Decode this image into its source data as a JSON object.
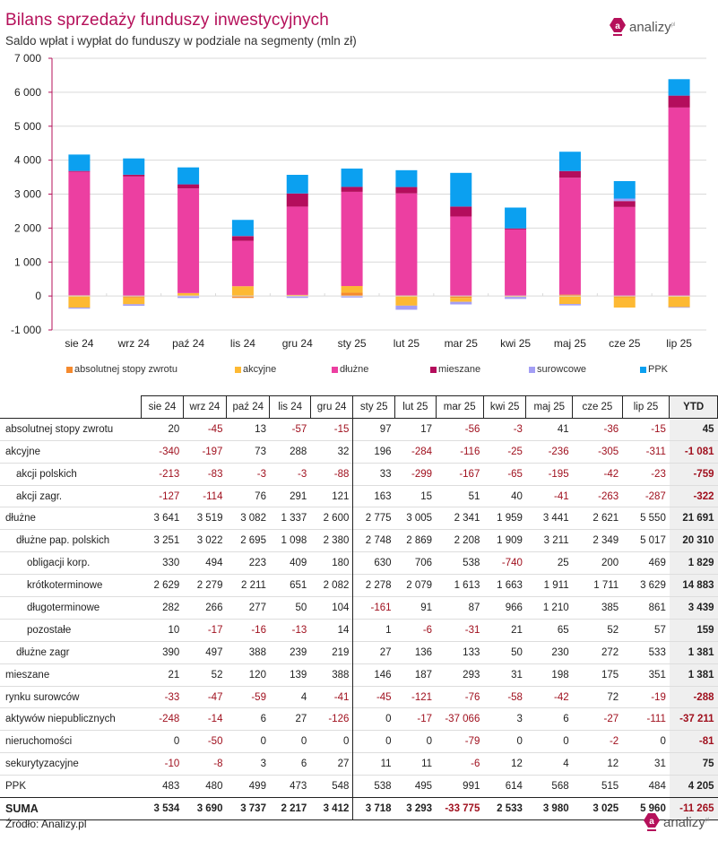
{
  "header": {
    "title": "Bilans sprzedaży funduszy inwestycyjnych",
    "subtitle": "Saldo wpłat i wypłat do funduszy w podziale na segmenty (mln zł)",
    "logo_text": "analizy",
    "logo_sup": "pl"
  },
  "colors": {
    "title": "#b5105a",
    "absolutnej": "#f58a2e",
    "akcyjne": "#fdb933",
    "dluzne": "#ec3fa1",
    "mieszane": "#b40d5c",
    "surowcowe": "#a39ef5",
    "ppk": "#0ba0f0",
    "negative_text": "#a0101e"
  },
  "chart_data": {
    "type": "bar",
    "stacked": true,
    "title": "Bilans sprzedaży funduszy inwestycyjnych",
    "subtitle": "Saldo wpłat i wypłat do funduszy w podziale na segmenty (mln zł)",
    "xlabel": "",
    "ylabel": "",
    "ylim": [
      -1000,
      7000
    ],
    "yticks": [
      -1000,
      0,
      1000,
      2000,
      3000,
      4000,
      5000,
      6000,
      7000
    ],
    "ytick_labels": [
      "-1 000",
      "0",
      "1 000",
      "2 000",
      "3 000",
      "4 000",
      "5 000",
      "6 000",
      "7 000"
    ],
    "grid": true,
    "legend_position": "bottom",
    "categories": [
      "sie 24",
      "wrz 24",
      "paź 24",
      "lis 24",
      "gru 24",
      "sty 25",
      "lut 25",
      "mar 25",
      "kwi 25",
      "maj 25",
      "cze 25",
      "lip 25"
    ],
    "series": [
      {
        "name": "absolutnej stopy zwrotu",
        "color_key": "absolutnej",
        "values": [
          20,
          -45,
          13,
          -57,
          -15,
          97,
          17,
          -56,
          -3,
          41,
          -36,
          -15
        ]
      },
      {
        "name": "akcyjne",
        "color_key": "akcyjne",
        "values": [
          -340,
          -197,
          73,
          288,
          32,
          196,
          -284,
          -116,
          -25,
          -236,
          -305,
          -311
        ]
      },
      {
        "name": "dłużne",
        "color_key": "dluzne",
        "values": [
          3641,
          3519,
          3082,
          1337,
          2600,
          2775,
          3005,
          2341,
          1959,
          3441,
          2621,
          5550
        ]
      },
      {
        "name": "mieszane",
        "color_key": "mieszane",
        "values": [
          21,
          52,
          120,
          139,
          388,
          146,
          187,
          293,
          31,
          198,
          175,
          351
        ]
      },
      {
        "name": "surowcowe",
        "color_key": "surowcowe",
        "values": [
          -33,
          -47,
          -59,
          4,
          -41,
          -45,
          -121,
          -76,
          -58,
          -42,
          72,
          -19
        ]
      },
      {
        "name": "PPK",
        "color_key": "ppk",
        "values": [
          483,
          480,
          499,
          473,
          548,
          538,
          495,
          991,
          614,
          568,
          515,
          484
        ]
      }
    ]
  },
  "table": {
    "columns": [
      "sie 24",
      "wrz 24",
      "paź 24",
      "lis 24",
      "gru 24",
      "sty 25",
      "lut 25",
      "mar 25",
      "kwi 25",
      "maj 25",
      "cze 25",
      "lip 25",
      "YTD"
    ],
    "rows": [
      {
        "label": "absolutnej stopy zwrotu",
        "level": 0,
        "major": false,
        "values": [
          "20",
          "-45",
          "13",
          "-57",
          "-15",
          "97",
          "17",
          "-56",
          "-3",
          "41",
          "-36",
          "-15"
        ],
        "ytd": "45"
      },
      {
        "label": "akcyjne",
        "level": 0,
        "major": true,
        "values": [
          "-340",
          "-197",
          "73",
          "288",
          "32",
          "196",
          "-284",
          "-116",
          "-25",
          "-236",
          "-305",
          "-311"
        ],
        "ytd": "-1 081"
      },
      {
        "label": "akcji polskich",
        "level": 1,
        "major": false,
        "values": [
          "-213",
          "-83",
          "-3",
          "-3",
          "-88",
          "33",
          "-299",
          "-167",
          "-65",
          "-195",
          "-42",
          "-23"
        ],
        "ytd": "-759"
      },
      {
        "label": "akcji zagr.",
        "level": 1,
        "major": false,
        "values": [
          "-127",
          "-114",
          "76",
          "291",
          "121",
          "163",
          "15",
          "51",
          "40",
          "-41",
          "-263",
          "-287"
        ],
        "ytd": "-322"
      },
      {
        "label": "dłużne",
        "level": 0,
        "major": true,
        "values": [
          "3 641",
          "3 519",
          "3 082",
          "1 337",
          "2 600",
          "2 775",
          "3 005",
          "2 341",
          "1 959",
          "3 441",
          "2 621",
          "5 550"
        ],
        "ytd": "21 691"
      },
      {
        "label": "dłużne pap. polskich",
        "level": 1,
        "major": false,
        "values": [
          "3 251",
          "3 022",
          "2 695",
          "1 098",
          "2 380",
          "2 748",
          "2 869",
          "2 208",
          "1 909",
          "3 211",
          "2 349",
          "5 017"
        ],
        "ytd": "20 310"
      },
      {
        "label": "obligacji korp.",
        "level": 2,
        "major": false,
        "values": [
          "330",
          "494",
          "223",
          "409",
          "180",
          "630",
          "706",
          "538",
          "-740",
          "25",
          "200",
          "469"
        ],
        "ytd": "1 829"
      },
      {
        "label": "krótkoterminowe",
        "level": 2,
        "major": false,
        "values": [
          "2 629",
          "2 279",
          "2 211",
          "651",
          "2 082",
          "2 278",
          "2 079",
          "1 613",
          "1 663",
          "1 911",
          "1 711",
          "3 629"
        ],
        "ytd": "14 883"
      },
      {
        "label": "długoterminowe",
        "level": 2,
        "major": false,
        "values": [
          "282",
          "266",
          "277",
          "50",
          "104",
          "-161",
          "91",
          "87",
          "966",
          "1 210",
          "385",
          "861"
        ],
        "ytd": "3 439"
      },
      {
        "label": "pozostałe",
        "level": 2,
        "major": false,
        "values": [
          "10",
          "-17",
          "-16",
          "-13",
          "14",
          "1",
          "-6",
          "-31",
          "21",
          "65",
          "52",
          "57"
        ],
        "ytd": "159"
      },
      {
        "label": "dłużne zagr",
        "level": 1,
        "major": false,
        "values": [
          "390",
          "497",
          "388",
          "239",
          "219",
          "27",
          "136",
          "133",
          "50",
          "230",
          "272",
          "533"
        ],
        "ytd": "1 381"
      },
      {
        "label": "mieszane",
        "level": 0,
        "major": true,
        "values": [
          "21",
          "52",
          "120",
          "139",
          "388",
          "146",
          "187",
          "293",
          "31",
          "198",
          "175",
          "351"
        ],
        "ytd": "1 381"
      },
      {
        "label": "rynku surowców",
        "level": 0,
        "major": true,
        "values": [
          "-33",
          "-47",
          "-59",
          "4",
          "-41",
          "-45",
          "-121",
          "-76",
          "-58",
          "-42",
          "72",
          "-19"
        ],
        "ytd": "-288"
      },
      {
        "label": "aktywów niepublicznych",
        "level": 0,
        "major": true,
        "values": [
          "-248",
          "-14",
          "6",
          "27",
          "-126",
          "0",
          "-17",
          "-37 066",
          "3",
          "6",
          "-27",
          "-111"
        ],
        "ytd": "-37 211"
      },
      {
        "label": "nieruchomości",
        "level": 0,
        "major": true,
        "values": [
          "0",
          "-50",
          "0",
          "0",
          "0",
          "0",
          "0",
          "-79",
          "0",
          "0",
          "-2",
          "0"
        ],
        "ytd": "-81"
      },
      {
        "label": "sekurytyzacyjne",
        "level": 0,
        "major": true,
        "values": [
          "-10",
          "-8",
          "3",
          "6",
          "27",
          "11",
          "11",
          "-6",
          "12",
          "4",
          "12",
          "31"
        ],
        "ytd": "75"
      },
      {
        "label": "PPK",
        "level": 0,
        "major": true,
        "values": [
          "483",
          "480",
          "499",
          "473",
          "548",
          "538",
          "495",
          "991",
          "614",
          "568",
          "515",
          "484"
        ],
        "ytd": "4 205"
      }
    ],
    "suma": {
      "label": "SUMA",
      "values": [
        "3 534",
        "3 690",
        "3 737",
        "2 217",
        "3 412",
        "3 718",
        "3 293",
        "-33 775",
        "2 533",
        "3 980",
        "3 025",
        "5 960"
      ],
      "ytd": "-11 265"
    }
  },
  "footer": {
    "source": "Źródło: Analizy.pl"
  }
}
